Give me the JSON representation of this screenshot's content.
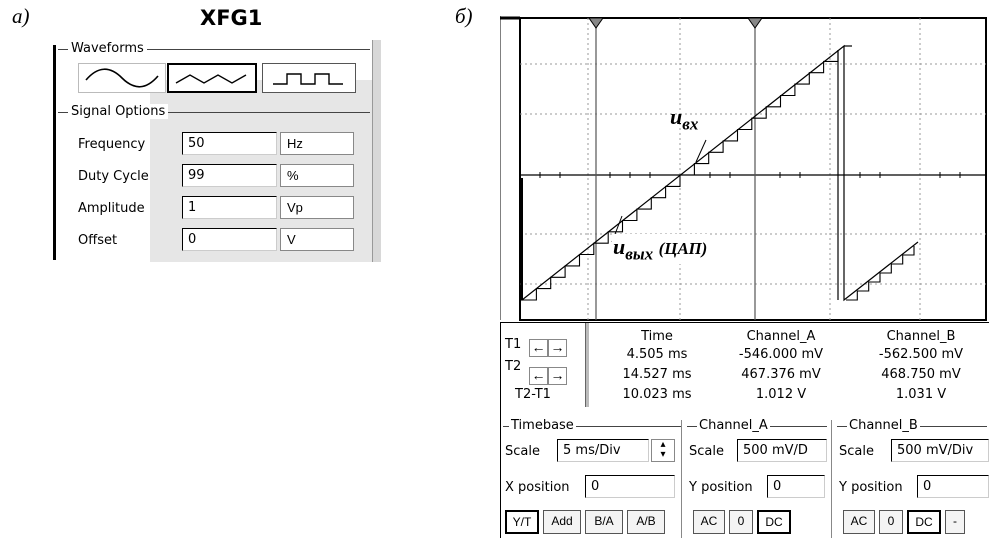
{
  "panel_a": {
    "label": "а)",
    "title": "XFG1",
    "waveforms_legend": "Waveforms",
    "signal_options_legend": "Signal Options",
    "waveform_buttons": [
      {
        "icon": "sine-wave-icon",
        "pressed": false
      },
      {
        "icon": "triangle-wave-icon",
        "pressed": true
      },
      {
        "icon": "square-wave-icon",
        "pressed": false
      }
    ],
    "options": [
      {
        "label": "Frequency",
        "value": "50",
        "unit": "Hz"
      },
      {
        "label": "Duty Cycle",
        "value": "99",
        "unit": "%"
      },
      {
        "label": "Amplitude",
        "value": "1",
        "unit": "Vp"
      },
      {
        "label": "Offset",
        "value": "0",
        "unit": "V"
      }
    ]
  },
  "panel_b": {
    "label": "б)",
    "annotations": {
      "u_in": "u",
      "u_in_sub": "вх",
      "u_out": "u",
      "u_out_sub": "вых",
      "u_out_paren": "(ЦАП)"
    },
    "cursor_labels": [
      "T1",
      "T2",
      "T2-T1"
    ],
    "readout_headers": [
      "Time",
      "Channel_A",
      "Channel_B"
    ],
    "readout_rows": [
      [
        "4.505 ms",
        "-546.000 mV",
        "-562.500 mV"
      ],
      [
        "14.527 ms",
        "467.376 mV",
        "468.750 mV"
      ],
      [
        "10.023 ms",
        "1.012 V",
        "1.031 V"
      ]
    ],
    "timebase": {
      "legend": "Timebase",
      "scale_label": "Scale",
      "scale_value": "5 ms/Div",
      "xpos_label": "X position",
      "xpos_value": "0",
      "buttons": [
        "Y/T",
        "Add",
        "B/A",
        "A/B"
      ]
    },
    "channel_a": {
      "legend": "Channel_A",
      "scale_label": "Scale",
      "scale_value": "500 mV/D",
      "ypos_label": "Y position",
      "ypos_value": "0",
      "buttons": [
        "AC",
        "0",
        "DC"
      ]
    },
    "channel_b": {
      "legend": "Channel_B",
      "scale_label": "Scale",
      "scale_value": "500 mV/Div",
      "ypos_label": "Y position",
      "ypos_value": "0",
      "buttons": [
        "AC",
        "0",
        "DC",
        "-"
      ]
    }
  }
}
